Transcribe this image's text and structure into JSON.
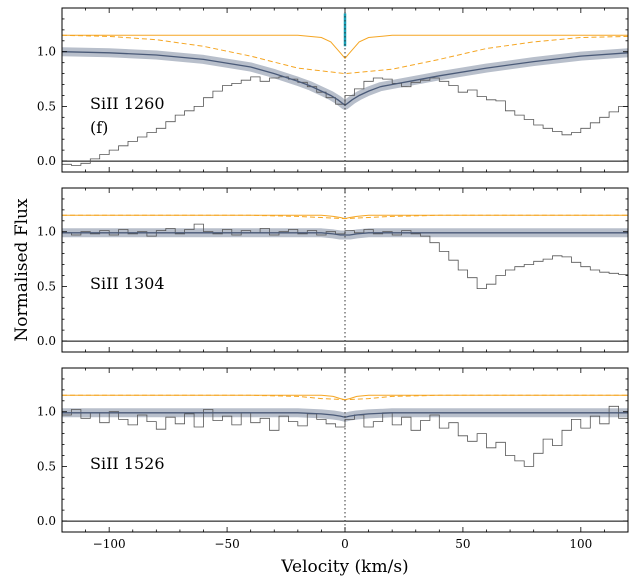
{
  "chart_data": {
    "type": "line",
    "xlabel": "Velocity (km/s)",
    "ylabel": "Normalised Flux",
    "xlim": [
      -120,
      120
    ],
    "x_ticks": [
      -100,
      -50,
      0,
      50,
      100
    ],
    "x_tick_labels": [
      "−100",
      "−50",
      "0",
      "50",
      "100"
    ],
    "colors": {
      "data": "#555555",
      "model": "#4a5a78",
      "model_band": "#b8bfcb",
      "component": "#f5a623",
      "component_marker": "#17a2b8",
      "zero_line": "#000000"
    },
    "panels": [
      {
        "label": "SiII 1260",
        "sublabel": "(f)",
        "ylim": [
          -0.1,
          1.4
        ],
        "y_ticks": [
          0.0,
          0.5,
          1.0
        ],
        "y_tick_labels": [
          "0.0",
          "0.5",
          "1.0"
        ],
        "component_marker": {
          "x": 0,
          "y_range": [
            1.05,
            1.35
          ]
        },
        "data_steps": {
          "x": [
            -118,
            -114,
            -110,
            -106,
            -102,
            -98,
            -94,
            -90,
            -86,
            -82,
            -78,
            -74,
            -70,
            -66,
            -62,
            -58,
            -54,
            -50,
            -46,
            -42,
            -38,
            -34,
            -30,
            -26,
            -22,
            -18,
            -14,
            -10,
            -6,
            -2,
            2,
            6,
            10,
            14,
            18,
            22,
            26,
            30,
            34,
            38,
            42,
            46,
            50,
            54,
            58,
            62,
            66,
            70,
            74,
            78,
            82,
            86,
            90,
            94,
            98,
            102,
            106,
            110,
            114,
            118
          ],
          "y": [
            -0.03,
            -0.04,
            -0.02,
            0.02,
            0.06,
            0.1,
            0.14,
            0.18,
            0.22,
            0.26,
            0.3,
            0.36,
            0.42,
            0.46,
            0.5,
            0.58,
            0.64,
            0.69,
            0.71,
            0.74,
            0.77,
            0.73,
            0.76,
            0.77,
            0.75,
            0.72,
            0.68,
            0.63,
            0.58,
            0.52,
            0.6,
            0.66,
            0.73,
            0.76,
            0.75,
            0.71,
            0.68,
            0.72,
            0.74,
            0.76,
            0.73,
            0.69,
            0.63,
            0.65,
            0.59,
            0.56,
            0.55,
            0.46,
            0.42,
            0.38,
            0.33,
            0.3,
            0.27,
            0.24,
            0.26,
            0.3,
            0.35,
            0.4,
            0.45,
            0.5
          ]
        },
        "model": {
          "x": [
            -120,
            -100,
            -80,
            -60,
            -40,
            -30,
            -20,
            -15,
            -10,
            -6,
            -3,
            0,
            3,
            6,
            10,
            15,
            20,
            30,
            40,
            60,
            80,
            100,
            120
          ],
          "y": [
            1.0,
            0.99,
            0.97,
            0.93,
            0.86,
            0.8,
            0.73,
            0.69,
            0.64,
            0.6,
            0.56,
            0.51,
            0.56,
            0.6,
            0.64,
            0.68,
            0.7,
            0.74,
            0.78,
            0.85,
            0.91,
            0.96,
            0.99
          ]
        },
        "component_profiles": [
          {
            "style": "solid",
            "x": [
              -120,
              -20,
              -10,
              -6,
              -4,
              -2,
              0,
              2,
              4,
              6,
              10,
              20,
              120
            ],
            "y": [
              1.15,
              1.15,
              1.13,
              1.09,
              1.04,
              0.99,
              0.94,
              0.99,
              1.04,
              1.09,
              1.13,
              1.15,
              1.15
            ]
          },
          {
            "style": "dashed",
            "x": [
              -120,
              -100,
              -80,
              -60,
              -40,
              -20,
              0,
              20,
              40,
              60,
              80,
              100,
              120
            ],
            "y": [
              1.15,
              1.14,
              1.11,
              1.05,
              0.96,
              0.85,
              0.8,
              0.84,
              0.93,
              1.03,
              1.09,
              1.13,
              1.14
            ]
          }
        ]
      },
      {
        "label": "SiII 1304",
        "sublabel": "",
        "ylim": [
          -0.1,
          1.4
        ],
        "y_ticks": [
          0.0,
          0.5,
          1.0
        ],
        "y_tick_labels": [
          "0.0",
          "0.5",
          "1.0"
        ],
        "data_steps": {
          "x": [
            -118,
            -114,
            -110,
            -106,
            -102,
            -98,
            -94,
            -90,
            -86,
            -82,
            -78,
            -74,
            -70,
            -66,
            -62,
            -58,
            -54,
            -50,
            -46,
            -42,
            -38,
            -34,
            -30,
            -26,
            -22,
            -18,
            -14,
            -10,
            -6,
            -2,
            2,
            6,
            10,
            14,
            18,
            22,
            26,
            30,
            34,
            38,
            42,
            46,
            50,
            54,
            58,
            62,
            66,
            70,
            74,
            78,
            82,
            86,
            90,
            94,
            98,
            102,
            106,
            110,
            114,
            118
          ],
          "y": [
            0.99,
            0.97,
            1.0,
            0.98,
            1.01,
            0.97,
            1.02,
            0.98,
            1.0,
            0.96,
            1.01,
            1.03,
            0.98,
            1.02,
            1.07,
            1.0,
            0.98,
            1.02,
            0.97,
            1.01,
            0.99,
            1.03,
            0.97,
            1.0,
            1.02,
            0.98,
            1.01,
            0.97,
            1.0,
            0.98,
            1.01,
            0.99,
            1.02,
            0.98,
            1.0,
            0.97,
            1.01,
            0.98,
            0.96,
            0.9,
            0.82,
            0.74,
            0.65,
            0.58,
            0.48,
            0.52,
            0.6,
            0.65,
            0.68,
            0.7,
            0.73,
            0.75,
            0.78,
            0.77,
            0.72,
            0.68,
            0.65,
            0.63,
            0.62,
            0.61
          ]
        },
        "model": {
          "x": [
            -120,
            -20,
            -10,
            -5,
            -2,
            0,
            2,
            5,
            10,
            20,
            120
          ],
          "y": [
            0.99,
            0.99,
            0.99,
            0.98,
            0.97,
            0.97,
            0.97,
            0.98,
            0.99,
            0.99,
            0.99
          ]
        },
        "component_profiles": [
          {
            "style": "solid",
            "x": [
              -120,
              -10,
              -5,
              -2,
              0,
              2,
              5,
              10,
              120
            ],
            "y": [
              1.15,
              1.15,
              1.14,
              1.13,
              1.12,
              1.13,
              1.14,
              1.15,
              1.15
            ]
          },
          {
            "style": "dashed",
            "x": [
              -120,
              -40,
              -20,
              -10,
              0,
              10,
              20,
              40,
              120
            ],
            "y": [
              1.15,
              1.15,
              1.14,
              1.13,
              1.12,
              1.13,
              1.14,
              1.15,
              1.15
            ]
          }
        ]
      },
      {
        "label": "SiII 1526",
        "sublabel": "",
        "ylim": [
          -0.1,
          1.4
        ],
        "y_ticks": [
          0.0,
          0.5,
          1.0
        ],
        "y_tick_labels": [
          "0.0",
          "0.5",
          "1.0"
        ],
        "data_steps": {
          "x": [
            -118,
            -114,
            -110,
            -106,
            -102,
            -98,
            -94,
            -90,
            -86,
            -82,
            -78,
            -74,
            -70,
            -66,
            -62,
            -58,
            -54,
            -50,
            -46,
            -42,
            -38,
            -34,
            -30,
            -26,
            -22,
            -18,
            -14,
            -10,
            -6,
            -2,
            2,
            6,
            10,
            14,
            18,
            22,
            26,
            30,
            34,
            38,
            42,
            46,
            50,
            54,
            58,
            62,
            66,
            70,
            74,
            78,
            82,
            86,
            90,
            94,
            98,
            102,
            106,
            110,
            114,
            118
          ],
          "y": [
            0.97,
            1.02,
            0.94,
            0.99,
            0.9,
            1.0,
            0.93,
            0.88,
            0.97,
            0.91,
            0.84,
            0.95,
            0.89,
            0.98,
            0.86,
            1.02,
            0.92,
            0.96,
            0.88,
            0.99,
            0.9,
            0.94,
            0.83,
            0.96,
            0.91,
            0.87,
            0.98,
            0.93,
            0.89,
            0.86,
            0.93,
            0.97,
            0.86,
            0.91,
            0.99,
            0.88,
            0.95,
            0.83,
            0.92,
            0.97,
            0.85,
            0.9,
            0.78,
            0.73,
            0.8,
            0.67,
            0.72,
            0.6,
            0.55,
            0.5,
            0.62,
            0.75,
            0.69,
            0.83,
            0.93,
            0.85,
            0.96,
            0.89,
            1.05,
            0.94
          ]
        },
        "model": {
          "x": [
            -120,
            -20,
            -10,
            -5,
            -2,
            0,
            2,
            5,
            10,
            20,
            120
          ],
          "y": [
            0.99,
            0.99,
            0.98,
            0.97,
            0.96,
            0.95,
            0.96,
            0.97,
            0.98,
            0.99,
            0.99
          ]
        },
        "component_profiles": [
          {
            "style": "solid",
            "x": [
              -120,
              -10,
              -5,
              -2,
              0,
              2,
              5,
              10,
              120
            ],
            "y": [
              1.15,
              1.15,
              1.14,
              1.12,
              1.11,
              1.12,
              1.14,
              1.15,
              1.15
            ]
          },
          {
            "style": "dashed",
            "x": [
              -120,
              -40,
              -20,
              -10,
              0,
              10,
              20,
              40,
              120
            ],
            "y": [
              1.15,
              1.15,
              1.14,
              1.12,
              1.11,
              1.12,
              1.14,
              1.15,
              1.15
            ]
          }
        ]
      }
    ]
  }
}
